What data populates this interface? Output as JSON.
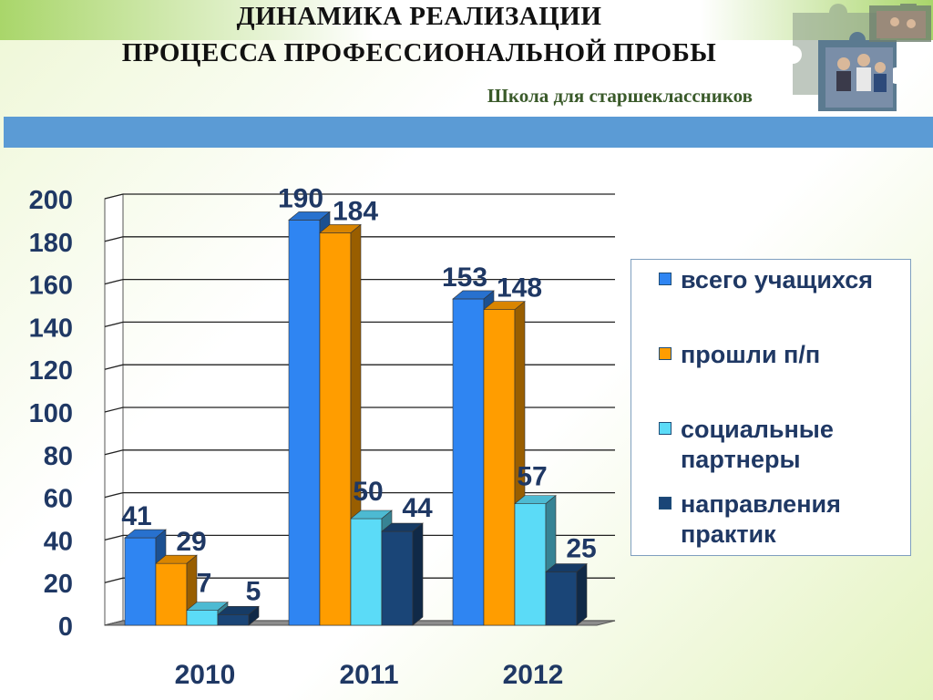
{
  "header": {
    "title_line1": "ДИНАМИКА РЕАЛИЗАЦИИ",
    "title_line2": "ПРОЦЕССА ПРОФЕССИОНАЛЬНОЙ ПРОБЫ",
    "subtitle": "Школа для старшеклассников"
  },
  "colors": {
    "accent_bar": "#5b9bd5",
    "text": "#1f3864"
  },
  "chart_data": {
    "type": "bar",
    "categories": [
      "2010",
      "2011",
      "2012"
    ],
    "series": [
      {
        "name": "всего учащихся",
        "values": [
          41,
          190,
          153
        ],
        "color": "#2f85f2"
      },
      {
        "name": "прошли п/п",
        "values": [
          29,
          184,
          148
        ],
        "color": "#ff9d00"
      },
      {
        "name": "социальные партнеры",
        "values": [
          7,
          50,
          57
        ],
        "color": "#5bdbf7"
      },
      {
        "name": "направления практик",
        "values": [
          5,
          44,
          25
        ],
        "color": "#1a4577"
      }
    ],
    "ylim": [
      0,
      200
    ],
    "yticks": [
      0,
      20,
      40,
      60,
      80,
      100,
      120,
      140,
      160,
      180,
      200
    ],
    "data_labels": true,
    "grid": true,
    "legend": "right",
    "style": "3d"
  }
}
